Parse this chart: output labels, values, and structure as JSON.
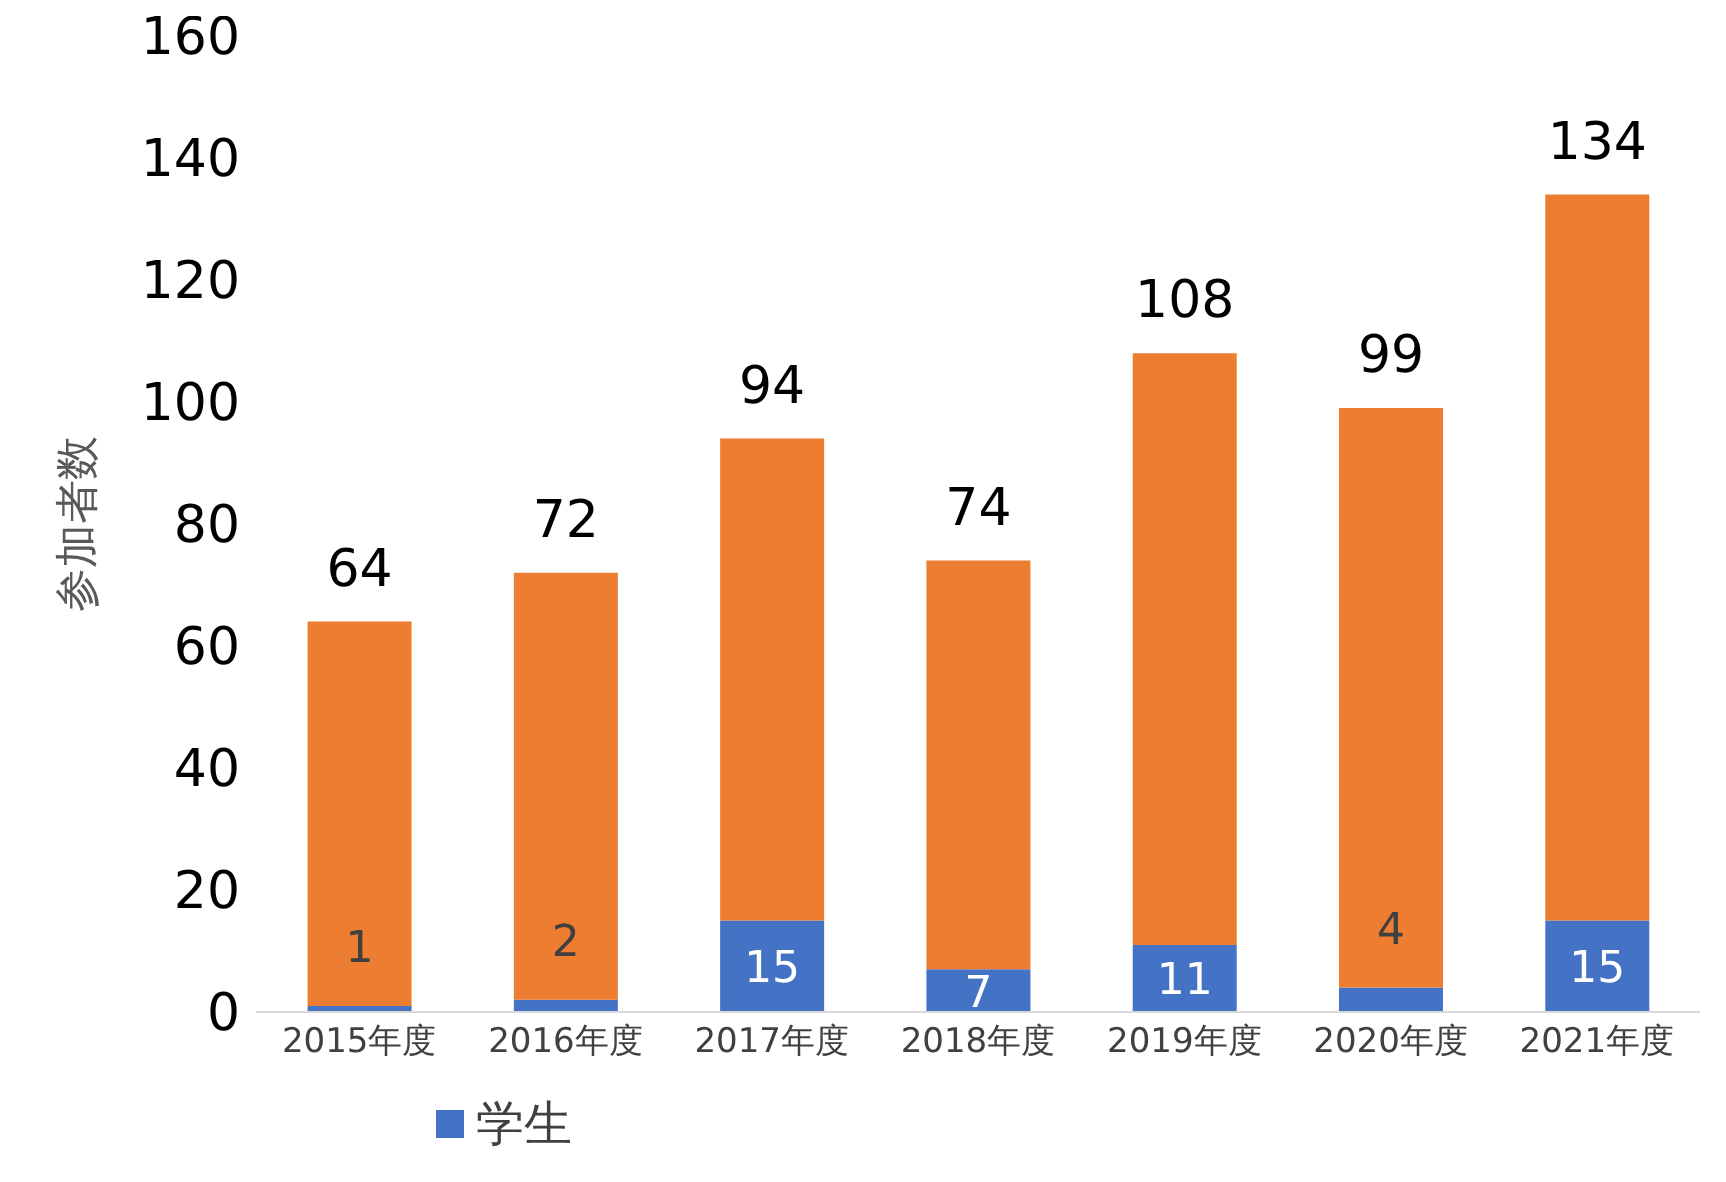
{
  "chart_data": {
    "type": "bar",
    "stacked": true,
    "ylabel": "参加者数",
    "categories": [
      "2015年度",
      "2016年度",
      "2017年度",
      "2018年度",
      "2019年度",
      "2020年度",
      "2021年度"
    ],
    "series": [
      {
        "name": "学生",
        "color": "#4472c4",
        "values": [
          1,
          2,
          15,
          7,
          11,
          4,
          15
        ],
        "value_labels": [
          "1",
          "2",
          "15",
          "7",
          "11",
          "4",
          "15"
        ]
      },
      {
        "color": "#ed7d31",
        "values": [
          63,
          70,
          79,
          67,
          97,
          95,
          119
        ]
      }
    ],
    "totals": [
      "64",
      "72",
      "94",
      "74",
      "108",
      "99",
      "134"
    ],
    "ylim": [
      0,
      160
    ],
    "yticks": [
      0,
      20,
      40,
      60,
      80,
      100,
      120,
      140,
      160
    ],
    "grid": false,
    "legend": "bottom left"
  }
}
